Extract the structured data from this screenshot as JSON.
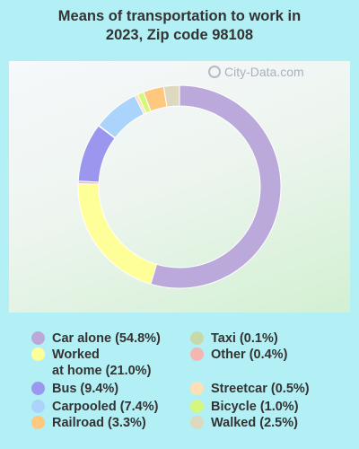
{
  "title": [
    "Means of transportation to work in",
    "2023, Zip code 98108"
  ],
  "watermark": "City-Data.com",
  "chart_data": {
    "type": "pie",
    "style": "donut",
    "title": "Means of transportation to work in 2023, Zip code 98108",
    "legend_position": "bottom",
    "series": [
      {
        "label": "Car alone (54.8%)",
        "name": "Car alone",
        "value": 54.8,
        "color": "#bba9db"
      },
      {
        "label": "Worked\nat home (21.0%)",
        "name": "Worked at home",
        "value": 21.0,
        "color": "#ffff99"
      },
      {
        "label": "Bus (9.4%)",
        "name": "Bus",
        "value": 9.4,
        "color": "#9b96ee"
      },
      {
        "label": "Carpooled (7.4%)",
        "name": "Carpooled",
        "value": 7.4,
        "color": "#aad4fb"
      },
      {
        "label": "Railroad (3.3%)",
        "name": "Railroad",
        "value": 3.3,
        "color": "#fec87f"
      },
      {
        "label": "Taxi (0.1%)",
        "name": "Taxi",
        "value": 0.1,
        "color": "#c7d9a9"
      },
      {
        "label": "Other (0.4%)",
        "name": "Other",
        "value": 0.4,
        "color": "#f4b6b1"
      },
      {
        "label": "Streetcar (0.5%)",
        "name": "Streetcar",
        "value": 0.5,
        "color": "#fde0b5"
      },
      {
        "label": "Bicycle (1.0%)",
        "name": "Bicycle",
        "value": 1.0,
        "color": "#d6f77e"
      },
      {
        "label": "Walked (2.5%)",
        "name": "Walked",
        "value": 2.5,
        "color": "#dcd9be"
      }
    ],
    "draw_order": [
      "Car alone",
      "Worked at home",
      "Other",
      "Bus",
      "Taxi",
      "Carpooled",
      "Streetcar",
      "Bicycle",
      "Railroad",
      "Walked"
    ]
  }
}
